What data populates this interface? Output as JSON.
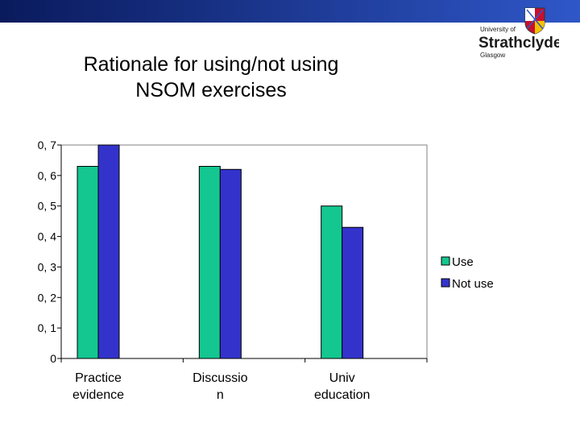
{
  "slide": {
    "title_line1": "Rationale for using/not using",
    "title_line2": "NSOM exercises"
  },
  "logo": {
    "line1": "University of",
    "line2": "Strathclyde",
    "line3": "Glasgow"
  },
  "colors": {
    "banner_start": "#0a1a5c",
    "banner_end": "#2f57c8",
    "use": "#14c690",
    "not_use": "#3333cc",
    "bar_stroke": "#000000"
  },
  "chart_data": {
    "type": "bar",
    "title": "Rationale for using/not using NSOM exercises",
    "categories": [
      [
        "Practice",
        "evidence"
      ],
      [
        "Discussio",
        "n"
      ],
      [
        "Univ",
        "education"
      ]
    ],
    "series": [
      {
        "name": "Use",
        "values": [
          0.63,
          0.63,
          0.5
        ]
      },
      {
        "name": "Not use",
        "values": [
          0.7,
          0.62,
          0.43
        ]
      }
    ],
    "y_ticks": [
      "0",
      "0, 1",
      "0, 2",
      "0, 3",
      "0, 4",
      "0, 5",
      "0, 6",
      "0, 7"
    ],
    "ylim": [
      0,
      0.7
    ],
    "grid": false,
    "legend_position": "right"
  }
}
